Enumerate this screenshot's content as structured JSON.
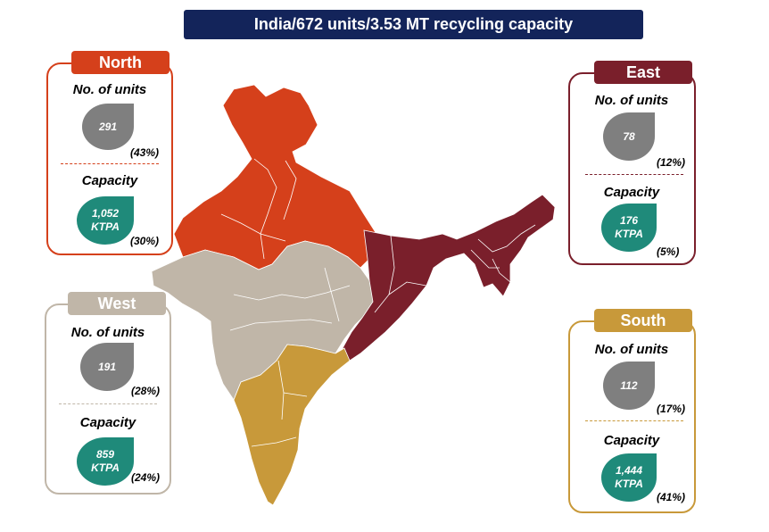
{
  "banner": {
    "country": "India",
    "units": "672 units",
    "capacity": "3.53 MT recycling capacity",
    "separator": "/"
  },
  "colors": {
    "north": "#d5401b",
    "east": "#7a1f2b",
    "west": "#c0b6a8",
    "south": "#c8993a",
    "navy": "#13245a",
    "units_drop": "#7f7f7f",
    "capacity_drop": "#1f8a7a"
  },
  "regions": {
    "north": {
      "name": "North",
      "units_label": "No. of units",
      "units": "291",
      "units_pct": "(43%)",
      "capacity_label": "Capacity",
      "capacity_value": "1,052",
      "capacity_unit": "KTPA",
      "capacity_pct": "(30%)"
    },
    "east": {
      "name": "East",
      "units_label": "No. of units",
      "units": "78",
      "units_pct": "(12%)",
      "capacity_label": "Capacity",
      "capacity_value": "176",
      "capacity_unit": "KTPA",
      "capacity_pct": "(5%)"
    },
    "west": {
      "name": "West",
      "units_label": "No. of units",
      "units": "191",
      "units_pct": "(28%)",
      "capacity_label": "Capacity",
      "capacity_value": "859",
      "capacity_unit": "KTPA",
      "capacity_pct": "(24%)"
    },
    "south": {
      "name": "South",
      "units_label": "No. of units",
      "units": "112",
      "units_pct": "(17%)",
      "capacity_label": "Capacity",
      "capacity_value": "1,444",
      "capacity_unit": "KTPA",
      "capacity_pct": "(41%)"
    }
  }
}
